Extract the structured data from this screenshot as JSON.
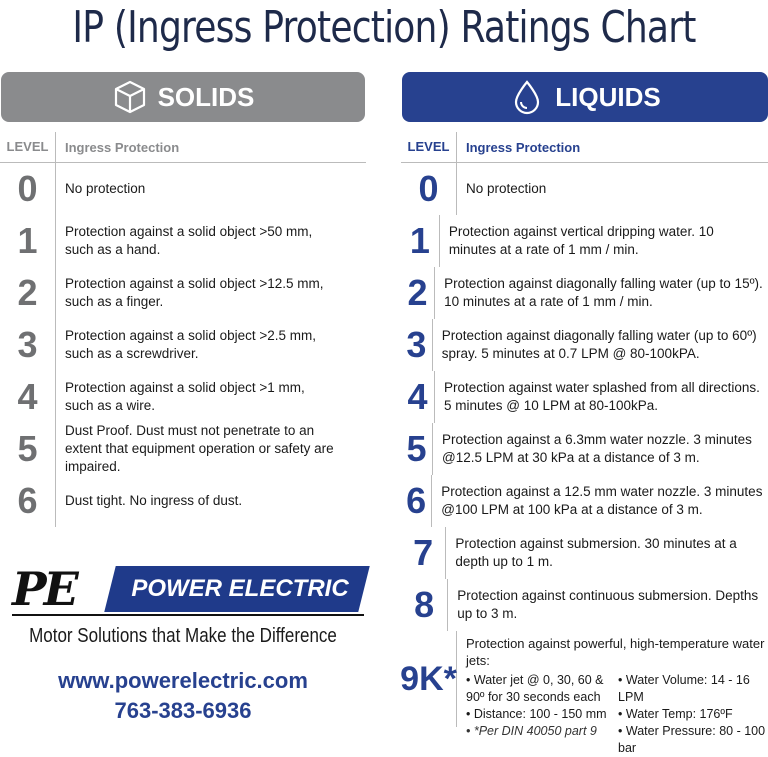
{
  "title": "IP (Ingress Protection) Ratings Chart",
  "colors": {
    "solids_gray": "#8a8b8d",
    "liquids_blue": "#27418f"
  },
  "solids": {
    "header": "SOLIDS",
    "icon": "cube-icon",
    "col_level": "LEVEL",
    "col_ip": "Ingress Protection",
    "rows": [
      {
        "level": "0",
        "text": "No protection"
      },
      {
        "level": "1",
        "text": "Protection against a solid object >50 mm, such as a hand."
      },
      {
        "level": "2",
        "text": "Protection against a solid object >12.5 mm, such as a finger."
      },
      {
        "level": "3",
        "text": "Protection against a solid object >2.5 mm, such as a screwdriver."
      },
      {
        "level": "4",
        "text": "Protection against a solid object >1 mm, such as a wire."
      },
      {
        "level": "5",
        "text": "Dust Proof. Dust must not penetrate to an extent that equipment operation or safety are impaired."
      },
      {
        "level": "6",
        "text": "Dust tight. No ingress of dust."
      }
    ]
  },
  "liquids": {
    "header": "LIQUIDS",
    "icon": "water-drop-icon",
    "col_level": "LEVEL",
    "col_ip": "Ingress Protection",
    "rows": [
      {
        "level": "0",
        "text": "No protection"
      },
      {
        "level": "1",
        "text": "Protection against vertical dripping water. 10 minutes at a rate of 1 mm / min."
      },
      {
        "level": "2",
        "text": "Protection against diagonally falling water (up to 15º). 10 minutes at a rate of 1 mm / min."
      },
      {
        "level": "3",
        "text": "Protection against diagonally falling water (up to 60º) spray. 5 minutes at 0.7 LPM @ 80-100kPA."
      },
      {
        "level": "4",
        "text": "Protection against water splashed from all directions. 5 minutes @ 10 LPM at 80-100kPa."
      },
      {
        "level": "5",
        "text": "Protection against a 6.3mm water nozzle. 3 minutes @12.5 LPM at 30 kPa at a distance of 3 m."
      },
      {
        "level": "6",
        "text": "Protection against a 12.5 mm water nozzle. 3 minutes @100 LPM at 100 kPa at a distance of 3 m."
      },
      {
        "level": "7",
        "text": "Protection against submersion. 30 minutes at a depth up to 1 m."
      },
      {
        "level": "8",
        "text": "Protection against continuous submersion. Depths up to 3 m."
      }
    ],
    "special": {
      "level": "9K*",
      "lead": "Protection against powerful, high-temperature water jets:",
      "col1": [
        "Water jet @ 0, 30, 60 & 90º for 30 seconds each",
        "Distance:  100 - 150 mm"
      ],
      "col2": [
        "Water Volume: 14 - 16 LPM",
        "Water Temp: 176ºF",
        "Water Pressure: 80 - 100 bar"
      ],
      "footnote": "*Per DIN 40050 part 9"
    }
  },
  "brand": {
    "logo_mark": "PE",
    "logo_text": "POWER ELECTRIC",
    "tagline": "Motor Solutions that Make the Difference",
    "url": "www.powerelectric.com",
    "phone": "763-383-6936"
  }
}
